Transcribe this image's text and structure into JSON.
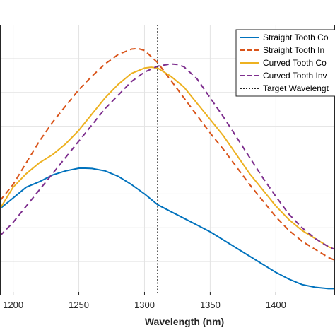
{
  "chart_data": {
    "type": "line",
    "xlabel": "Wavelength (nm)",
    "ylabel": "",
    "xlim": [
      1190,
      1445
    ],
    "ylim": [
      0,
      1
    ],
    "x_ticks": [
      1200,
      1250,
      1300,
      1350,
      1400
    ],
    "x_tick_labels": [
      "1200",
      "1250",
      "1300",
      "1350",
      "1400"
    ],
    "grid": true,
    "legend_position": "top-right",
    "series": [
      {
        "name": "Straight Tooth Co",
        "color": "#0072bd",
        "dash": "solid",
        "x": [
          1190,
          1200,
          1210,
          1220,
          1230,
          1240,
          1250,
          1255,
          1260,
          1270,
          1280,
          1290,
          1300,
          1310,
          1320,
          1330,
          1340,
          1350,
          1360,
          1370,
          1380,
          1390,
          1400,
          1410,
          1420,
          1430,
          1440,
          1445
        ],
        "y": [
          0.32,
          0.36,
          0.4,
          0.42,
          0.445,
          0.46,
          0.47,
          0.47,
          0.469,
          0.46,
          0.44,
          0.41,
          0.375,
          0.335,
          0.31,
          0.285,
          0.26,
          0.235,
          0.205,
          0.175,
          0.145,
          0.115,
          0.085,
          0.06,
          0.04,
          0.03,
          0.025,
          0.025
        ]
      },
      {
        "name": "Straight Tooth In",
        "color": "#d95319",
        "dash": "dashed",
        "x": [
          1190,
          1200,
          1210,
          1220,
          1230,
          1240,
          1250,
          1260,
          1270,
          1280,
          1290,
          1295,
          1300,
          1310,
          1320,
          1330,
          1340,
          1350,
          1360,
          1370,
          1380,
          1390,
          1400,
          1410,
          1420,
          1430,
          1440,
          1445
        ],
        "y": [
          0.35,
          0.41,
          0.49,
          0.57,
          0.64,
          0.7,
          0.76,
          0.81,
          0.855,
          0.89,
          0.91,
          0.912,
          0.905,
          0.86,
          0.795,
          0.73,
          0.665,
          0.6,
          0.54,
          0.475,
          0.41,
          0.35,
          0.29,
          0.24,
          0.2,
          0.17,
          0.14,
          0.13
        ]
      },
      {
        "name": "Curved Tooth Co",
        "color": "#edb120",
        "dash": "solid",
        "x": [
          1190,
          1200,
          1210,
          1220,
          1230,
          1240,
          1250,
          1260,
          1270,
          1280,
          1290,
          1300,
          1305,
          1310,
          1320,
          1330,
          1340,
          1350,
          1360,
          1370,
          1380,
          1390,
          1400,
          1410,
          1420,
          1430,
          1440,
          1445
        ],
        "y": [
          0.32,
          0.4,
          0.45,
          0.49,
          0.52,
          0.56,
          0.61,
          0.67,
          0.73,
          0.78,
          0.82,
          0.84,
          0.843,
          0.84,
          0.81,
          0.77,
          0.71,
          0.65,
          0.59,
          0.52,
          0.45,
          0.39,
          0.33,
          0.28,
          0.24,
          0.21,
          0.18,
          0.17
        ]
      },
      {
        "name": "Curved Tooth Inv",
        "color": "#7e2f8e",
        "dash": "dashed",
        "x": [
          1190,
          1200,
          1210,
          1220,
          1230,
          1240,
          1250,
          1260,
          1270,
          1280,
          1290,
          1300,
          1310,
          1320,
          1325,
          1330,
          1340,
          1350,
          1360,
          1370,
          1380,
          1390,
          1400,
          1410,
          1420,
          1430,
          1440,
          1445
        ],
        "y": [
          0.22,
          0.27,
          0.33,
          0.39,
          0.45,
          0.51,
          0.57,
          0.63,
          0.69,
          0.74,
          0.79,
          0.825,
          0.847,
          0.855,
          0.853,
          0.845,
          0.8,
          0.73,
          0.66,
          0.585,
          0.51,
          0.435,
          0.365,
          0.3,
          0.25,
          0.21,
          0.18,
          0.17
        ]
      },
      {
        "name": "Target Wavelengt",
        "color": "#262626",
        "dash": "dotted",
        "vline_x": 1310
      }
    ]
  }
}
